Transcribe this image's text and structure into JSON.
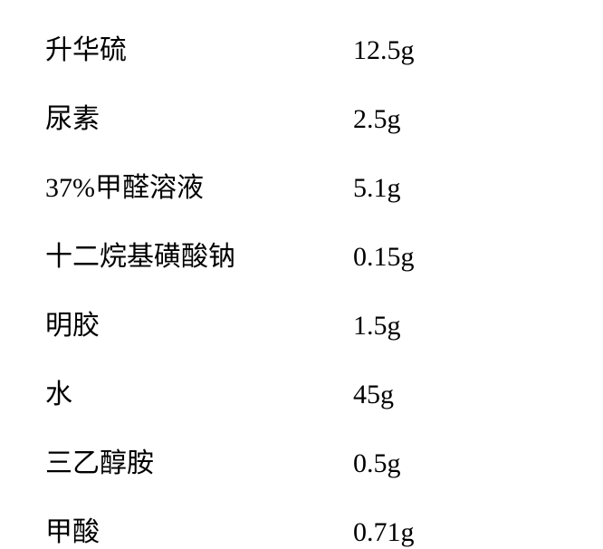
{
  "ingredients": [
    {
      "name": "升华硫",
      "amount": "12.5g"
    },
    {
      "name": "尿素",
      "amount": "2.5g"
    },
    {
      "name": "37%甲醛溶液",
      "amount": "5.1g"
    },
    {
      "name": "十二烷基磺酸钠",
      "amount": "0.15g"
    },
    {
      "name": "明胶",
      "amount": "1.5g"
    },
    {
      "name": "水",
      "amount": "45g"
    },
    {
      "name": "三乙醇胺",
      "amount": "0.5g"
    },
    {
      "name": "甲酸",
      "amount": "0.71g"
    }
  ],
  "styling": {
    "font_size": 30,
    "text_color": "#000000",
    "background_color": "#ffffff",
    "row_gap": 32,
    "name_column_width": 340
  }
}
